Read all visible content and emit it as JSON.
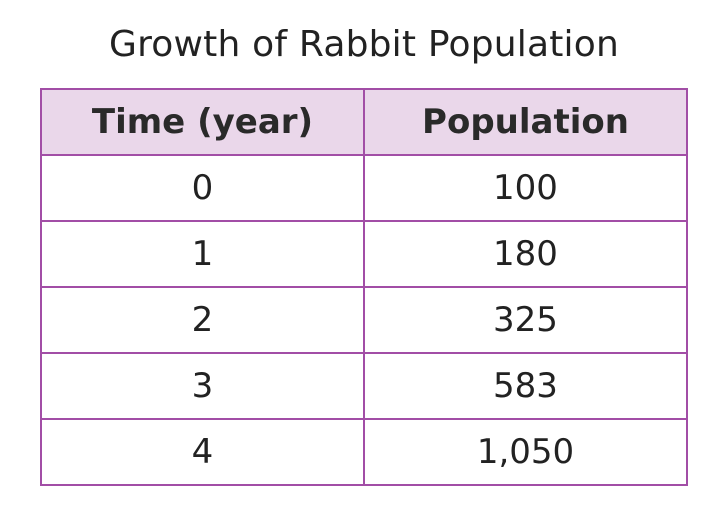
{
  "chart_data": {
    "type": "table",
    "title": "Growth of Rabbit Population",
    "columns": [
      "Time (year)",
      "Population"
    ],
    "rows": [
      [
        "0",
        "100"
      ],
      [
        "1",
        "180"
      ],
      [
        "2",
        "325"
      ],
      [
        "3",
        "583"
      ],
      [
        "4",
        "1,050"
      ]
    ],
    "values": {
      "time_year": [
        0,
        1,
        2,
        3,
        4
      ],
      "population": [
        100,
        180,
        325,
        583,
        1050
      ]
    }
  },
  "colors": {
    "header_background": "#ead7ea",
    "border": "#a24ea6",
    "text": "#222222"
  }
}
